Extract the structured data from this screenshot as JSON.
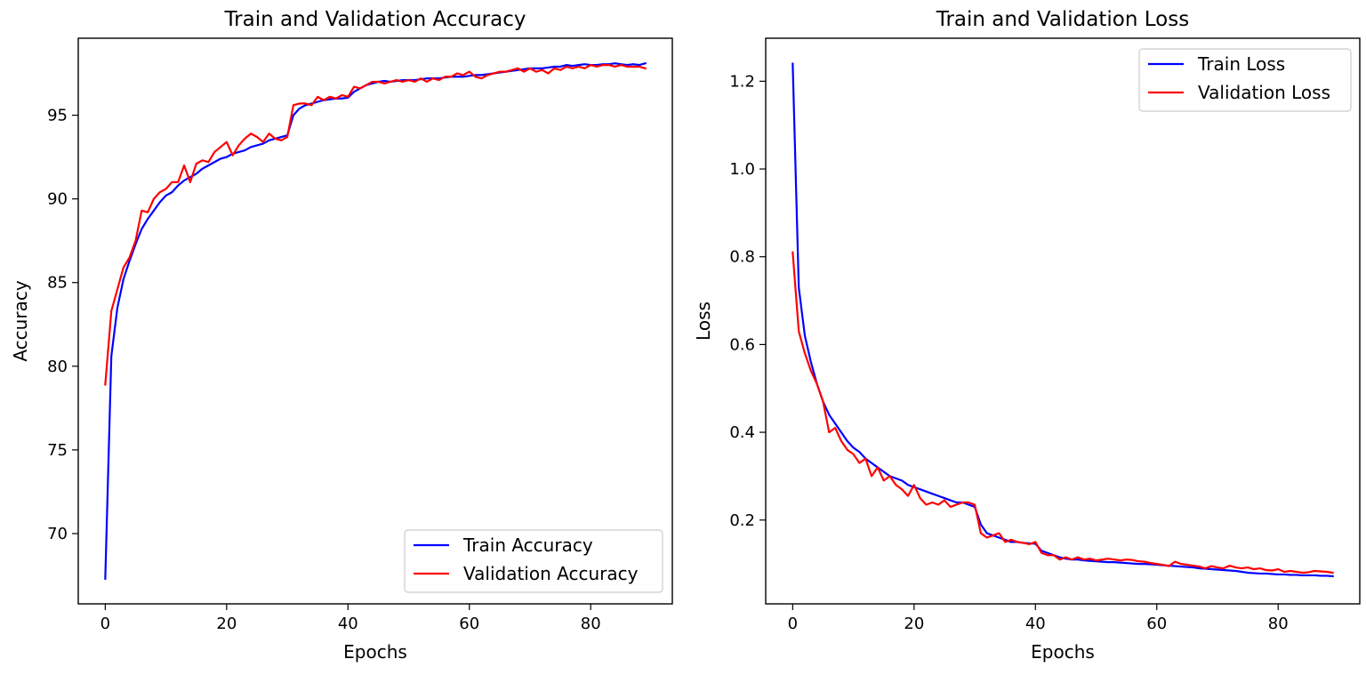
{
  "chart_data": [
    {
      "type": "line",
      "title": "Train and Validation Accuracy",
      "xlabel": "Epochs",
      "ylabel": "Accuracy",
      "xlim": [
        -4.45,
        93.45
      ],
      "ylim": [
        65.8,
        99.6
      ],
      "xticks": [
        0,
        20,
        40,
        60,
        80
      ],
      "yticks": [
        70,
        75,
        80,
        85,
        90,
        95
      ],
      "grid": false,
      "legend_position": "lower-right",
      "series": [
        {
          "name": "Train Accuracy",
          "color": "#0000ff",
          "x_start": 0,
          "values": [
            67.3,
            80.6,
            83.5,
            85.2,
            86.3,
            87.3,
            88.2,
            88.8,
            89.3,
            89.8,
            90.2,
            90.4,
            90.8,
            91.1,
            91.3,
            91.5,
            91.8,
            92.0,
            92.2,
            92.4,
            92.5,
            92.7,
            92.8,
            92.9,
            93.1,
            93.2,
            93.3,
            93.5,
            93.6,
            93.7,
            93.8,
            95.0,
            95.4,
            95.6,
            95.7,
            95.8,
            95.9,
            95.95,
            96.0,
            96.0,
            96.05,
            96.4,
            96.6,
            96.8,
            96.9,
            97.0,
            97.05,
            97.0,
            97.05,
            97.1,
            97.1,
            97.1,
            97.15,
            97.2,
            97.2,
            97.2,
            97.25,
            97.3,
            97.3,
            97.3,
            97.35,
            97.4,
            97.4,
            97.45,
            97.5,
            97.55,
            97.6,
            97.65,
            97.7,
            97.75,
            97.8,
            97.8,
            97.8,
            97.85,
            97.9,
            97.9,
            98.0,
            97.95,
            98.0,
            98.05,
            98.0,
            98.0,
            98.05,
            98.05,
            98.1,
            98.05,
            98.0,
            98.05,
            98.0,
            98.1
          ]
        },
        {
          "name": "Validation Accuracy",
          "color": "#ff0000",
          "x_start": 0,
          "values": [
            78.9,
            83.3,
            84.6,
            85.9,
            86.5,
            87.5,
            89.3,
            89.2,
            90.0,
            90.4,
            90.6,
            91.0,
            91.0,
            92.0,
            91.0,
            92.1,
            92.3,
            92.2,
            92.8,
            93.1,
            93.4,
            92.6,
            93.2,
            93.6,
            93.9,
            93.7,
            93.4,
            93.9,
            93.6,
            93.5,
            93.7,
            95.6,
            95.7,
            95.7,
            95.6,
            96.1,
            95.9,
            96.1,
            96.0,
            96.2,
            96.1,
            96.7,
            96.6,
            96.8,
            97.0,
            97.0,
            96.9,
            97.0,
            97.1,
            97.0,
            97.1,
            97.0,
            97.2,
            97.0,
            97.2,
            97.1,
            97.3,
            97.3,
            97.5,
            97.4,
            97.6,
            97.3,
            97.2,
            97.4,
            97.5,
            97.6,
            97.6,
            97.7,
            97.8,
            97.6,
            97.8,
            97.6,
            97.7,
            97.5,
            97.8,
            97.7,
            97.9,
            97.8,
            97.9,
            97.8,
            98.0,
            97.9,
            98.0,
            98.0,
            97.9,
            98.0,
            97.9,
            97.9,
            97.9,
            97.8
          ]
        }
      ]
    },
    {
      "type": "line",
      "title": "Train and Validation Loss",
      "xlabel": "Epochs",
      "ylabel": "Loss",
      "xlim": [
        -4.45,
        93.45
      ],
      "ylim": [
        0.009,
        1.298
      ],
      "xticks": [
        0,
        20,
        40,
        60,
        80
      ],
      "yticks": [
        0.2,
        0.4,
        0.6,
        0.8,
        1.0,
        1.2
      ],
      "grid": false,
      "legend_position": "upper-right",
      "series": [
        {
          "name": "Train Loss",
          "color": "#0000ff",
          "x_start": 0,
          "values": [
            1.24,
            0.73,
            0.62,
            0.56,
            0.51,
            0.47,
            0.44,
            0.42,
            0.4,
            0.38,
            0.365,
            0.355,
            0.34,
            0.33,
            0.32,
            0.31,
            0.3,
            0.295,
            0.29,
            0.28,
            0.275,
            0.27,
            0.265,
            0.26,
            0.255,
            0.25,
            0.245,
            0.24,
            0.24,
            0.235,
            0.23,
            0.19,
            0.17,
            0.165,
            0.16,
            0.155,
            0.15,
            0.15,
            0.148,
            0.147,
            0.146,
            0.13,
            0.125,
            0.12,
            0.115,
            0.112,
            0.11,
            0.11,
            0.108,
            0.107,
            0.106,
            0.105,
            0.104,
            0.104,
            0.103,
            0.102,
            0.101,
            0.1,
            0.1,
            0.099,
            0.098,
            0.097,
            0.096,
            0.095,
            0.094,
            0.093,
            0.092,
            0.09,
            0.089,
            0.088,
            0.087,
            0.086,
            0.085,
            0.084,
            0.082,
            0.08,
            0.079,
            0.078,
            0.078,
            0.077,
            0.076,
            0.076,
            0.075,
            0.075,
            0.074,
            0.074,
            0.074,
            0.073,
            0.073,
            0.072
          ]
        },
        {
          "name": "Validation Loss",
          "color": "#ff0000",
          "x_start": 0,
          "values": [
            0.81,
            0.63,
            0.58,
            0.54,
            0.51,
            0.47,
            0.4,
            0.41,
            0.38,
            0.36,
            0.35,
            0.33,
            0.34,
            0.3,
            0.32,
            0.29,
            0.3,
            0.28,
            0.27,
            0.255,
            0.28,
            0.25,
            0.235,
            0.24,
            0.235,
            0.245,
            0.23,
            0.235,
            0.24,
            0.24,
            0.235,
            0.17,
            0.16,
            0.165,
            0.17,
            0.15,
            0.155,
            0.15,
            0.148,
            0.145,
            0.15,
            0.125,
            0.12,
            0.12,
            0.11,
            0.115,
            0.11,
            0.115,
            0.11,
            0.112,
            0.108,
            0.11,
            0.112,
            0.11,
            0.108,
            0.11,
            0.109,
            0.106,
            0.105,
            0.102,
            0.1,
            0.098,
            0.095,
            0.105,
            0.1,
            0.098,
            0.096,
            0.094,
            0.09,
            0.095,
            0.092,
            0.09,
            0.096,
            0.092,
            0.09,
            0.092,
            0.088,
            0.09,
            0.086,
            0.085,
            0.088,
            0.082,
            0.084,
            0.082,
            0.08,
            0.081,
            0.084,
            0.083,
            0.082,
            0.08
          ]
        }
      ]
    }
  ]
}
